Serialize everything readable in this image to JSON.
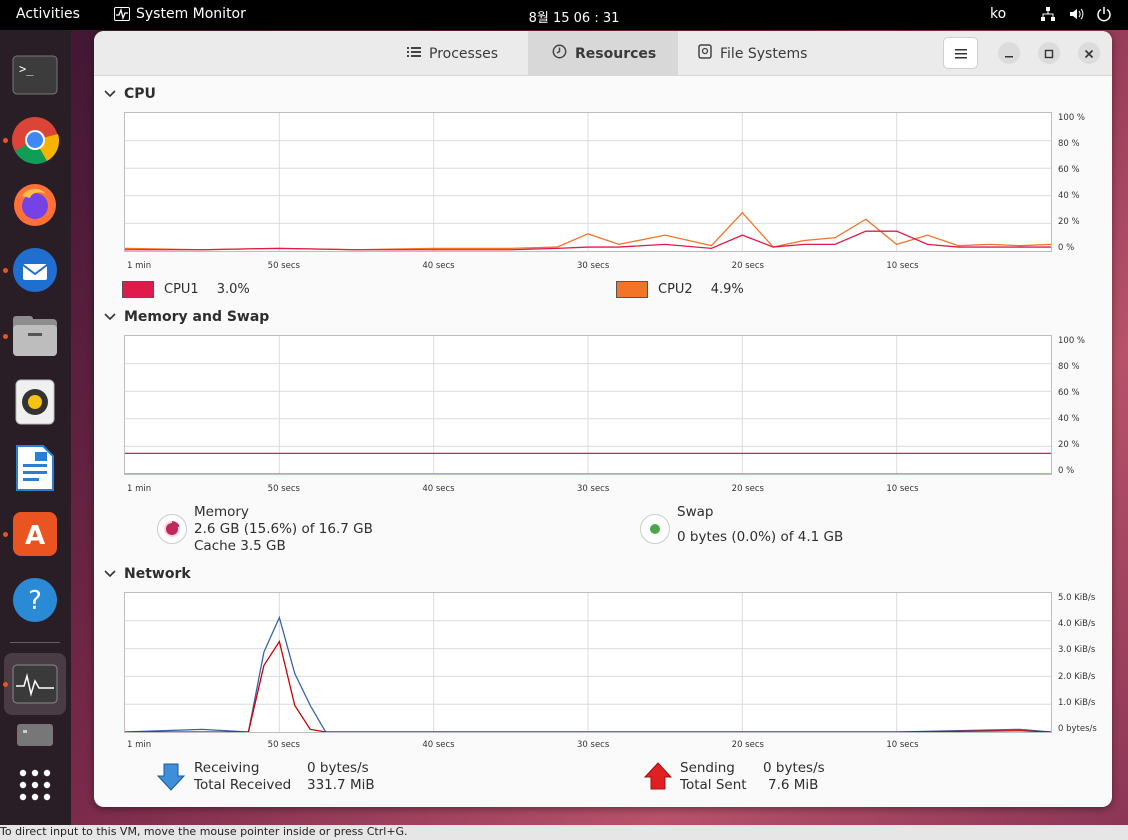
{
  "topbar": {
    "activities": "Activities",
    "app_name": "System Monitor",
    "clock": "8월 15  06 : 31",
    "lang": "ko"
  },
  "dock": {
    "items": [
      "terminal-icon",
      "chrome-icon",
      "firefox-icon",
      "thunderbird-icon",
      "files-icon",
      "rhythmbox-icon",
      "libreoffice-writer-icon",
      "app-center-icon",
      "help-icon",
      "system-monitor-icon",
      "disk-icon",
      "show-apps-icon"
    ]
  },
  "window": {
    "tabs": {
      "processes": "Processes",
      "resources": "Resources",
      "file_systems": "File Systems"
    }
  },
  "cpu": {
    "title": "CPU",
    "y_ticks": [
      "100 %",
      "80 %",
      "60 %",
      "40 %",
      "20 %",
      "0 %"
    ],
    "x_ticks": [
      "1 min",
      "50 secs",
      "40 secs",
      "30 secs",
      "20 secs",
      "10 secs"
    ],
    "cpu1_label": "CPU1",
    "cpu1_value": "3.0%",
    "cpu1_color": "#e01b4c",
    "cpu2_label": "CPU2",
    "cpu2_value": "4.9%",
    "cpu2_color": "#f37329"
  },
  "memory": {
    "title": "Memory and Swap",
    "y_ticks": [
      "100 %",
      "80 %",
      "60 %",
      "40 %",
      "20 %",
      "0 %"
    ],
    "x_ticks": [
      "1 min",
      "50 secs",
      "40 secs",
      "30 secs",
      "20 secs",
      "10 secs"
    ],
    "memory_label": "Memory",
    "memory_usage": "2.6 GB (15.6%) of 16.7 GB",
    "cache": "Cache 3.5 GB",
    "memory_color": "#c0285a",
    "swap_label": "Swap",
    "swap_usage": "0 bytes (0.0%) of 4.1 GB",
    "swap_color": "#4aa84a"
  },
  "network": {
    "title": "Network",
    "y_ticks": [
      "5.0 KiB/s",
      "4.0 KiB/s",
      "3.0 KiB/s",
      "2.0 KiB/s",
      "1.0 KiB/s",
      "0 bytes/s"
    ],
    "x_ticks": [
      "1 min",
      "50 secs",
      "40 secs",
      "30 secs",
      "20 secs",
      "10 secs"
    ],
    "receiving_label": "Receiving",
    "receiving_value": "0 bytes/s",
    "total_received_label": "Total Received",
    "total_received_value": "331.7 MiB",
    "sending_label": "Sending",
    "sending_value": "0 bytes/s",
    "total_sent_label": "Total Sent",
    "total_sent_value": "7.6 MiB",
    "receiving_color": "#3465a4",
    "sending_color": "#cc0000"
  },
  "chart_data": [
    {
      "type": "line",
      "title": "CPU",
      "x": [
        60,
        55,
        50,
        45,
        40,
        35,
        32,
        30,
        28,
        25,
        22,
        20,
        18,
        16,
        14,
        12,
        10,
        8,
        6,
        4,
        2,
        0
      ],
      "ylim": [
        0,
        100
      ],
      "series": [
        {
          "name": "CPU1",
          "values": [
            1,
            1,
            2,
            1,
            1,
            1,
            2,
            3,
            3,
            5,
            2,
            12,
            3,
            5,
            5,
            15,
            15,
            5,
            3,
            3,
            3,
            3
          ]
        },
        {
          "name": "CPU2",
          "values": [
            2,
            1,
            2,
            1,
            2,
            2,
            3,
            13,
            5,
            12,
            4,
            29,
            3,
            8,
            10,
            24,
            5,
            12,
            4,
            5,
            4,
            5
          ]
        }
      ]
    },
    {
      "type": "line",
      "title": "Memory and Swap",
      "x": [
        60,
        0
      ],
      "ylim": [
        0,
        100
      ],
      "series": [
        {
          "name": "Memory",
          "values": [
            15.6,
            15.6
          ]
        },
        {
          "name": "Swap",
          "values": [
            0.0,
            0.0
          ]
        }
      ]
    },
    {
      "type": "line",
      "title": "Network",
      "x": [
        60,
        55,
        52,
        51,
        50,
        49,
        48,
        47,
        45,
        40,
        30,
        20,
        10,
        2,
        0
      ],
      "ylim": [
        0,
        5.0
      ],
      "series": [
        {
          "name": "Receiving",
          "values": [
            0,
            0.1,
            0,
            3.0,
            4.3,
            2.2,
            1.0,
            0,
            0,
            0,
            0,
            0,
            0,
            0.1,
            0
          ]
        },
        {
          "name": "Sending",
          "values": [
            0,
            0,
            0,
            2.5,
            3.4,
            1.0,
            0.1,
            0,
            0,
            0,
            0,
            0,
            0,
            0.05,
            0
          ]
        }
      ]
    }
  ],
  "statusbar": {
    "text": "To direct input to this VM, move the mouse pointer inside or press Ctrl+G."
  }
}
